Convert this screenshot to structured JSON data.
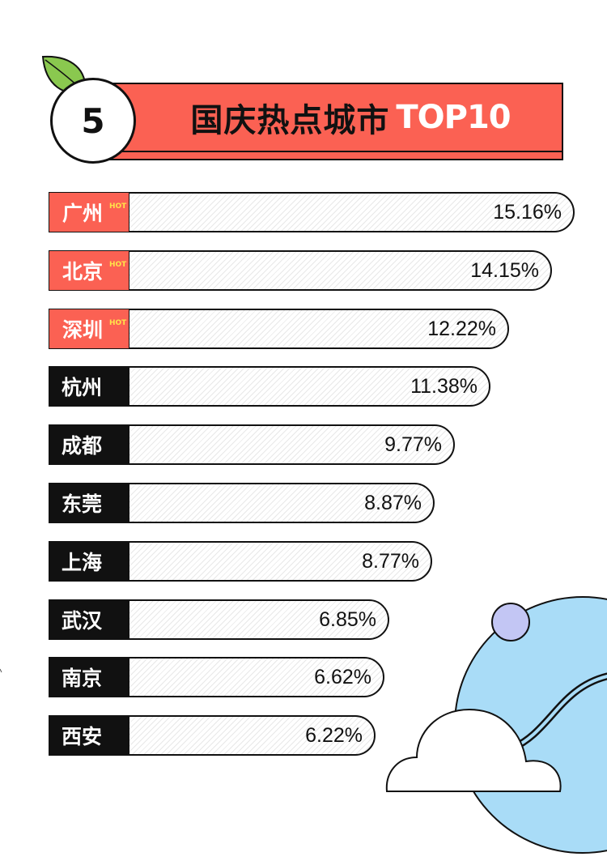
{
  "header": {
    "rank_number": "5",
    "title_zh": "国庆热点城市",
    "title_en": "TOP10"
  },
  "colors": {
    "accent": "#fb6153",
    "dark": "#111111",
    "hot_tag": "#ffe34a",
    "sky": "#a9dcf7",
    "moon": "#c3c6f4"
  },
  "chart_data": {
    "type": "bar",
    "orientation": "horizontal",
    "categories": [
      "广州",
      "北京",
      "深圳",
      "杭州",
      "成都",
      "东莞",
      "上海",
      "武汉",
      "南京",
      "西安"
    ],
    "values": [
      15.16,
      14.15,
      12.22,
      11.38,
      9.77,
      8.87,
      8.77,
      6.85,
      6.62,
      6.22
    ],
    "value_labels": [
      "15.16%",
      "14.15%",
      "12.22%",
      "11.38%",
      "9.77%",
      "8.87%",
      "8.77%",
      "6.85%",
      "6.62%",
      "6.22%"
    ],
    "hot": [
      true,
      true,
      true,
      false,
      false,
      false,
      false,
      false,
      false,
      false
    ],
    "hot_tag": "HOT",
    "unit": "%"
  }
}
